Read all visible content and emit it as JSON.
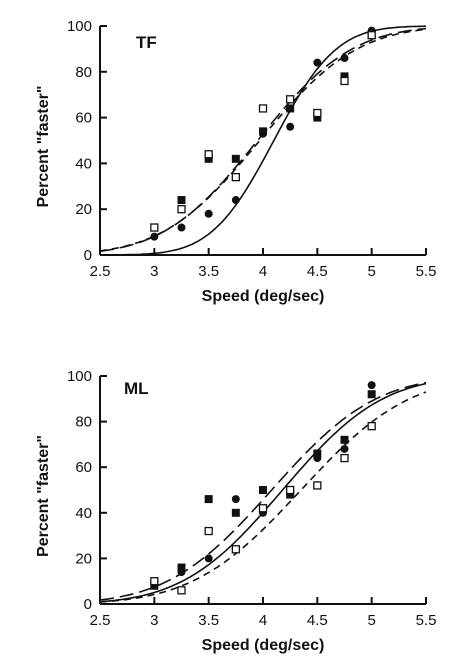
{
  "chart_data": [
    {
      "type": "scatter",
      "panel_label": "TF",
      "xlabel": "Speed  (deg/sec)",
      "ylabel": "Percent  \"faster\"",
      "xlim": [
        2.5,
        5.5
      ],
      "ylim": [
        0,
        100
      ],
      "xticks": [
        2.5,
        3,
        3.5,
        4,
        4.5,
        5,
        5.5
      ],
      "xtick_labels": [
        "2.5",
        "3",
        "3.5",
        "4",
        "4.5",
        "5",
        "5.5"
      ],
      "yticks": [
        0,
        20,
        40,
        60,
        80,
        100
      ],
      "ytick_labels": [
        "0",
        "20",
        "40",
        "60",
        "80",
        "100"
      ],
      "series": [
        {
          "marker": "filled-circle",
          "points": [
            [
              3,
              8
            ],
            [
              3.25,
              12
            ],
            [
              3.5,
              18
            ],
            [
              3.75,
              24
            ],
            [
              4,
              53
            ],
            [
              4.25,
              56
            ],
            [
              4.5,
              84
            ],
            [
              4.75,
              86
            ],
            [
              5,
              98
            ]
          ]
        },
        {
          "marker": "filled-square",
          "points": [
            [
              3.25,
              24
            ],
            [
              3.5,
              42
            ],
            [
              3.75,
              42
            ],
            [
              4,
              54
            ],
            [
              4.25,
              64
            ],
            [
              4.5,
              60
            ],
            [
              4.75,
              78
            ],
            [
              5,
              96
            ]
          ]
        },
        {
          "marker": "open-square",
          "points": [
            [
              3,
              12
            ],
            [
              3.25,
              20
            ],
            [
              3.5,
              44
            ],
            [
              3.75,
              34
            ],
            [
              4,
              64
            ],
            [
              4.25,
              68
            ],
            [
              4.5,
              62
            ],
            [
              4.75,
              76
            ],
            [
              5,
              96
            ]
          ]
        }
      ],
      "fits": [
        {
          "style": "solid",
          "mu": 4.1,
          "sigma": 0.45
        },
        {
          "style": "long-dash",
          "mu": 3.95,
          "sigma": 0.68
        },
        {
          "style": "short-dash",
          "mu": 3.97,
          "sigma": 0.7
        }
      ]
    },
    {
      "type": "scatter",
      "panel_label": "ML",
      "xlabel": "Speed  (deg/sec)",
      "ylabel": "Percent  \"faster\"",
      "xlim": [
        2.5,
        5.5
      ],
      "ylim": [
        0,
        100
      ],
      "xticks": [
        2.5,
        3,
        3.5,
        4,
        4.5,
        5,
        5.5
      ],
      "xtick_labels": [
        "2.5",
        "3",
        "3.5",
        "4",
        "4.5",
        "5",
        "5.5"
      ],
      "yticks": [
        0,
        20,
        40,
        60,
        80,
        100
      ],
      "ytick_labels": [
        "0",
        "20",
        "40",
        "60",
        "80",
        "100"
      ],
      "series": [
        {
          "marker": "filled-circle",
          "points": [
            [
              3,
              9
            ],
            [
              3.25,
              14
            ],
            [
              3.5,
              20
            ],
            [
              3.75,
              46
            ],
            [
              4,
              40
            ],
            [
              4.25,
              48
            ],
            [
              4.5,
              64
            ],
            [
              4.75,
              68
            ],
            [
              5,
              96
            ]
          ]
        },
        {
          "marker": "filled-square",
          "points": [
            [
              3,
              8
            ],
            [
              3.25,
              16
            ],
            [
              3.5,
              46
            ],
            [
              3.75,
              40
            ],
            [
              4,
              50
            ],
            [
              4.25,
              48
            ],
            [
              4.5,
              66
            ],
            [
              4.75,
              72
            ],
            [
              5,
              92
            ]
          ]
        },
        {
          "marker": "open-square",
          "points": [
            [
              3,
              10
            ],
            [
              3.25,
              6
            ],
            [
              3.5,
              32
            ],
            [
              3.75,
              24
            ],
            [
              4,
              42
            ],
            [
              4.25,
              50
            ],
            [
              4.5,
              52
            ],
            [
              4.75,
              64
            ],
            [
              5,
              78
            ]
          ]
        }
      ],
      "fits": [
        {
          "style": "solid",
          "mu": 4.18,
          "sigma": 0.72
        },
        {
          "style": "long-dash",
          "mu": 4.08,
          "sigma": 0.75
        },
        {
          "style": "short-dash",
          "mu": 4.35,
          "sigma": 0.78
        }
      ]
    }
  ]
}
